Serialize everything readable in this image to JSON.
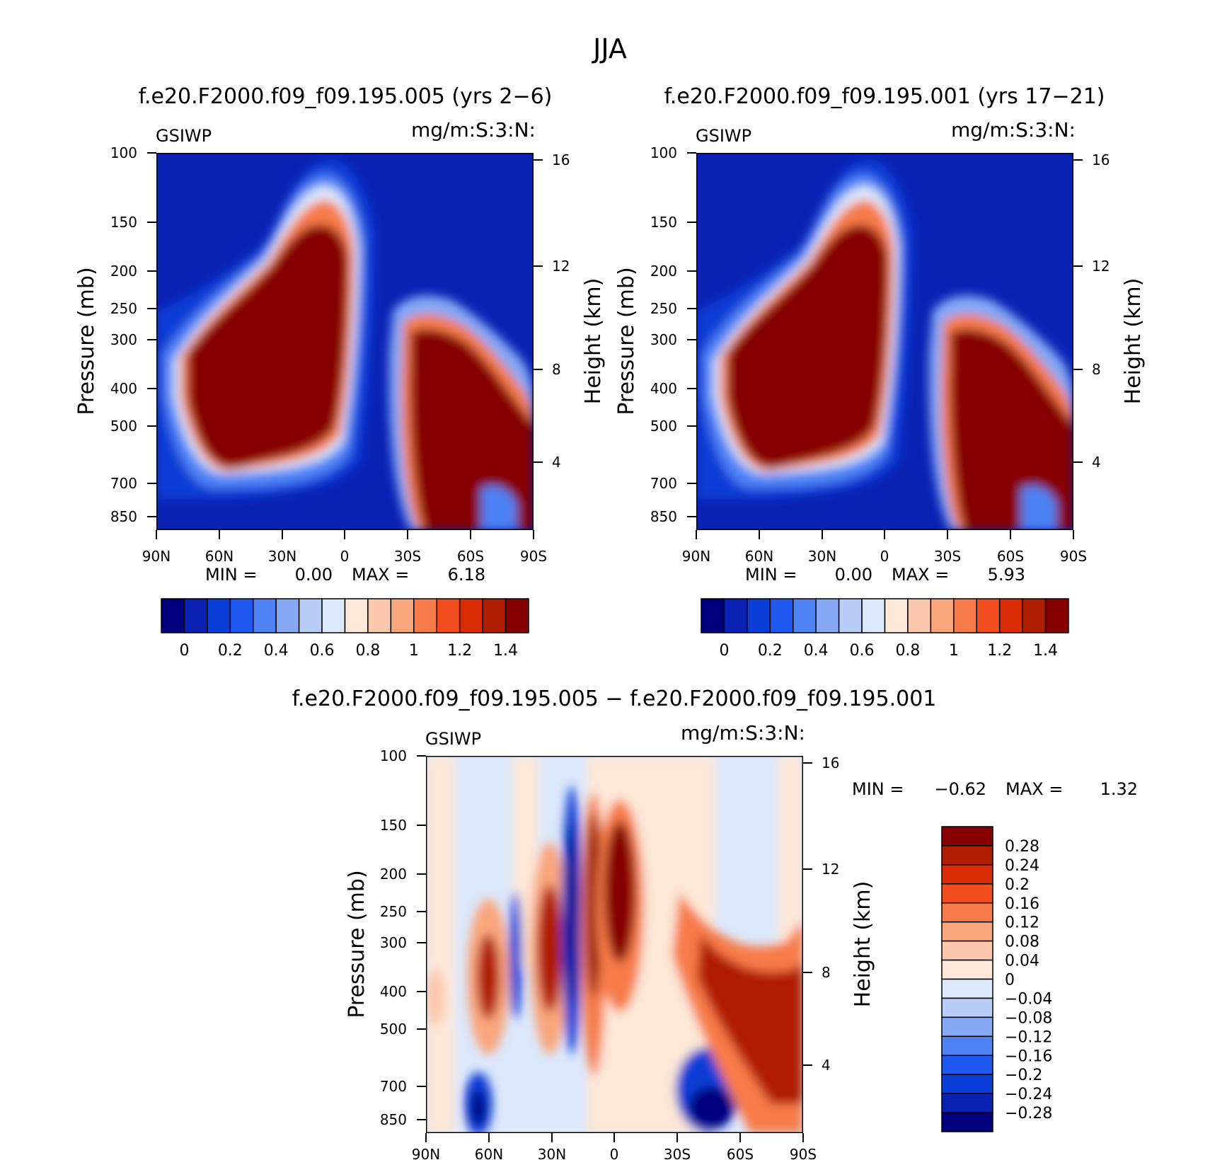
{
  "figure_title": "JJA",
  "chart_data": [
    {
      "type": "heatmap",
      "title": "f.e20.F2000.f09_f09.195.005 (yrs 2−6)",
      "left_label": "GSIWP",
      "right_label": "mg/m:S:3:N:",
      "xlabel": "",
      "ylabel": "Pressure (mb)",
      "y2label": "Height (km)",
      "x_ticks": [
        "90N",
        "60N",
        "30N",
        "0",
        "30S",
        "60S",
        "90S"
      ],
      "y_ticks": [
        "100",
        "150",
        "200",
        "250",
        "300",
        "400",
        "500",
        "700",
        "850"
      ],
      "y2_ticks": [
        "16",
        "12",
        "8",
        "4"
      ],
      "y_scale": "log",
      "stats": {
        "min_label": "MIN =",
        "min": "0.00",
        "max_label": "MAX =",
        "max": "6.18"
      },
      "colorbar": {
        "orientation": "horizontal",
        "labels": [
          "0",
          "0.2",
          "0.4",
          "0.6",
          "0.8",
          "1",
          "1.2",
          "1.4"
        ],
        "colors": [
          "#00007f",
          "#0a22b4",
          "#0b3ed6",
          "#1f58ef",
          "#4e82f5",
          "#86a9f6",
          "#b8cdf8",
          "#dce8fb",
          "#fde7d7",
          "#fcc8ad",
          "#f9a67d",
          "#f77b4a",
          "#f24d1f",
          "#d92c07",
          "#b01e02",
          "#860000"
        ]
      }
    },
    {
      "type": "heatmap",
      "title": "f.e20.F2000.f09_f09.195.001 (yrs 17−21)",
      "left_label": "GSIWP",
      "right_label": "mg/m:S:3:N:",
      "xlabel": "",
      "ylabel": "Pressure (mb)",
      "y2label": "Height (km)",
      "x_ticks": [
        "90N",
        "60N",
        "30N",
        "0",
        "30S",
        "60S",
        "90S"
      ],
      "y_ticks": [
        "100",
        "150",
        "200",
        "250",
        "300",
        "400",
        "500",
        "700",
        "850"
      ],
      "y2_ticks": [
        "16",
        "12",
        "8",
        "4"
      ],
      "y_scale": "log",
      "stats": {
        "min_label": "MIN =",
        "min": "0.00",
        "max_label": "MAX =",
        "max": "5.93"
      },
      "colorbar": {
        "orientation": "horizontal",
        "labels": [
          "0",
          "0.2",
          "0.4",
          "0.6",
          "0.8",
          "1",
          "1.2",
          "1.4"
        ],
        "colors": [
          "#00007f",
          "#0a22b4",
          "#0b3ed6",
          "#1f58ef",
          "#4e82f5",
          "#86a9f6",
          "#b8cdf8",
          "#dce8fb",
          "#fde7d7",
          "#fcc8ad",
          "#f9a67d",
          "#f77b4a",
          "#f24d1f",
          "#d92c07",
          "#b01e02",
          "#860000"
        ]
      }
    },
    {
      "type": "heatmap",
      "title": "f.e20.F2000.f09_f09.195.005 − f.e20.F2000.f09_f09.195.001",
      "left_label": "GSIWP",
      "right_label": "mg/m:S:3:N:",
      "xlabel": "",
      "ylabel": "Pressure (mb)",
      "y2label": "Height (km)",
      "x_ticks": [
        "90N",
        "60N",
        "30N",
        "0",
        "30S",
        "60S",
        "90S"
      ],
      "y_ticks": [
        "100",
        "150",
        "200",
        "250",
        "300",
        "400",
        "500",
        "700",
        "850"
      ],
      "y2_ticks": [
        "16",
        "12",
        "8",
        "4"
      ],
      "y_scale": "log",
      "stats": {
        "min_label": "MIN =",
        "min": "−0.62",
        "max_label": "MAX =",
        "max": "1.32"
      },
      "colorbar": {
        "orientation": "vertical",
        "labels": [
          "0.28",
          "0.24",
          "0.2",
          "0.16",
          "0.12",
          "0.08",
          "0.04",
          "0",
          "−0.04",
          "−0.08",
          "−0.12",
          "−0.16",
          "−0.2",
          "−0.24",
          "−0.28"
        ],
        "colors": [
          "#860000",
          "#b01e02",
          "#d92c07",
          "#f24d1f",
          "#f77b4a",
          "#f9a67d",
          "#fcc8ad",
          "#fde7d7",
          "#dce8fb",
          "#b8cdf8",
          "#86a9f6",
          "#4e82f5",
          "#1f58ef",
          "#0b3ed6",
          "#0a22b4",
          "#00007f"
        ]
      }
    }
  ]
}
